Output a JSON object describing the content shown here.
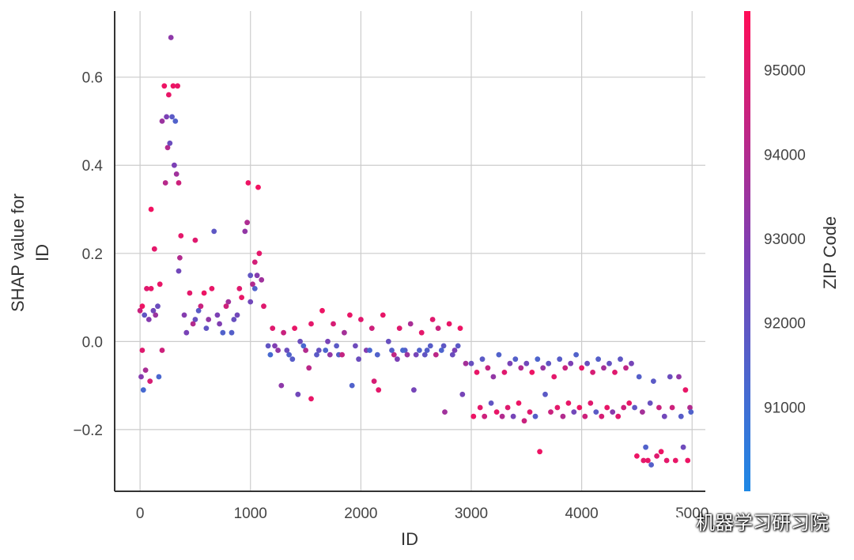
{
  "chart_data": {
    "type": "scatter",
    "xlabel": "ID",
    "ylabel_line1": "SHAP value for",
    "ylabel_line2": "ID",
    "xlim": [
      -230,
      5120
    ],
    "ylim": [
      -0.34,
      0.75
    ],
    "x_ticks": [
      0,
      1000,
      2000,
      3000,
      4000,
      5000
    ],
    "x_tick_labels": [
      "0",
      "1000",
      "2000",
      "3000",
      "4000",
      "5000"
    ],
    "y_ticks": [
      0.6,
      0.4,
      0.2,
      0.0,
      -0.2
    ],
    "y_tick_labels": [
      "0.6",
      "0.4",
      "0.2",
      "0.0",
      "−0.2"
    ],
    "grid": true,
    "colorbar": {
      "label": "ZIP Code",
      "min": 90000,
      "max": 95700,
      "ticks": [
        95000,
        94000,
        93000,
        92000,
        91000
      ],
      "tick_labels": [
        "95000",
        "94000",
        "93000",
        "92000",
        "91000"
      ],
      "low_color": "#1e88e5",
      "mid_color": "#7e3fb4",
      "high_color": "#ff0d57"
    },
    "series": [
      {
        "points": [
          [
            0,
            0.07,
            94500
          ],
          [
            20,
            0.08,
            95300
          ],
          [
            40,
            0.06,
            92000
          ],
          [
            60,
            0.12,
            95000
          ],
          [
            80,
            0.05,
            93000
          ],
          [
            100,
            0.12,
            95200
          ],
          [
            120,
            0.07,
            92500
          ],
          [
            140,
            0.06,
            93500
          ],
          [
            10,
            -0.08,
            93000
          ],
          [
            30,
            -0.11,
            91200
          ],
          [
            50,
            -0.065,
            93800
          ],
          [
            90,
            -0.09,
            94800
          ],
          [
            20,
            -0.02,
            95000
          ],
          [
            100,
            0.3,
            95400
          ],
          [
            130,
            0.21,
            95100
          ],
          [
            160,
            0.08,
            92300
          ],
          [
            180,
            0.13,
            95200
          ],
          [
            200,
            -0.02,
            94600
          ],
          [
            170,
            -0.08,
            91300
          ],
          [
            200,
            0.5,
            93500
          ],
          [
            220,
            0.58,
            95300
          ],
          [
            240,
            0.51,
            92800
          ],
          [
            250,
            0.44,
            94000
          ],
          [
            260,
            0.56,
            95200
          ],
          [
            270,
            0.45,
            92300
          ],
          [
            280,
            0.69,
            93200
          ],
          [
            290,
            0.51,
            91800
          ],
          [
            300,
            0.58,
            95300
          ],
          [
            310,
            0.4,
            92800
          ],
          [
            320,
            0.5,
            91500
          ],
          [
            330,
            0.38,
            93600
          ],
          [
            340,
            0.58,
            95200
          ],
          [
            230,
            0.36,
            94100
          ],
          [
            350,
            0.36,
            94600
          ],
          [
            360,
            0.19,
            94000
          ],
          [
            370,
            0.24,
            95100
          ],
          [
            350,
            0.16,
            92500
          ],
          [
            400,
            0.06,
            93000
          ],
          [
            450,
            0.11,
            95100
          ],
          [
            500,
            0.05,
            92200
          ],
          [
            550,
            0.08,
            94500
          ],
          [
            600,
            0.03,
            92000
          ],
          [
            650,
            0.12,
            95200
          ],
          [
            700,
            0.06,
            92800
          ],
          [
            750,
            0.02,
            91500
          ],
          [
            800,
            0.09,
            93600
          ],
          [
            850,
            0.05,
            92200
          ],
          [
            900,
            0.12,
            95000
          ],
          [
            420,
            0.02,
            92700
          ],
          [
            480,
            0.04,
            94000
          ],
          [
            530,
            0.07,
            91800
          ],
          [
            580,
            0.11,
            95300
          ],
          [
            620,
            0.05,
            93300
          ],
          [
            670,
            0.25,
            91900
          ],
          [
            720,
            0.04,
            92900
          ],
          [
            780,
            0.08,
            94600
          ],
          [
            830,
            0.02,
            91600
          ],
          [
            880,
            0.06,
            92500
          ],
          [
            500,
            0.23,
            95000
          ],
          [
            920,
            0.1,
            95200
          ],
          [
            950,
            0.25,
            93300
          ],
          [
            970,
            0.27,
            93900
          ],
          [
            980,
            0.36,
            95300
          ],
          [
            1000,
            0.15,
            92000
          ],
          [
            1020,
            0.13,
            94000
          ],
          [
            1040,
            0.12,
            91500
          ],
          [
            1060,
            0.15,
            93000
          ],
          [
            1070,
            0.35,
            95400
          ],
          [
            1080,
            0.2,
            95100
          ],
          [
            1100,
            0.14,
            93600
          ],
          [
            1120,
            0.08,
            95000
          ],
          [
            1040,
            0.18,
            94700
          ],
          [
            1000,
            0.09,
            92500
          ],
          [
            1160,
            -0.01,
            92000
          ],
          [
            1200,
            0.03,
            95000
          ],
          [
            1250,
            -0.02,
            93300
          ],
          [
            1300,
            0.02,
            94500
          ],
          [
            1350,
            -0.03,
            91500
          ],
          [
            1400,
            0.03,
            95200
          ],
          [
            1450,
            0.0,
            92300
          ],
          [
            1500,
            -0.02,
            94000
          ],
          [
            1550,
            0.04,
            95100
          ],
          [
            1600,
            -0.03,
            91800
          ],
          [
            1650,
            0.07,
            95300
          ],
          [
            1700,
            0.0,
            92700
          ],
          [
            1750,
            0.04,
            94800
          ],
          [
            1800,
            -0.03,
            91600
          ],
          [
            1850,
            0.02,
            93700
          ],
          [
            1900,
            0.06,
            95200
          ],
          [
            1950,
            -0.01,
            92400
          ],
          [
            2000,
            0.05,
            95000
          ],
          [
            2050,
            -0.02,
            93000
          ],
          [
            2100,
            0.03,
            94600
          ],
          [
            2150,
            -0.03,
            91500
          ],
          [
            2200,
            0.06,
            95200
          ],
          [
            2250,
            0.0,
            92200
          ],
          [
            2300,
            -0.03,
            94300
          ],
          [
            2350,
            0.03,
            95000
          ],
          [
            2400,
            -0.02,
            91800
          ],
          [
            2450,
            0.04,
            93800
          ],
          [
            2500,
            -0.03,
            92600
          ],
          [
            2550,
            0.02,
            95100
          ],
          [
            2600,
            -0.02,
            91600
          ],
          [
            2650,
            0.05,
            95000
          ],
          [
            2700,
            0.03,
            94500
          ],
          [
            2750,
            -0.01,
            91900
          ],
          [
            2800,
            0.04,
            95200
          ],
          [
            2850,
            -0.02,
            92800
          ],
          [
            2900,
            0.03,
            95300
          ],
          [
            1180,
            -0.03,
            91200
          ],
          [
            1220,
            -0.01,
            92900
          ],
          [
            1280,
            -0.1,
            93200
          ],
          [
            1330,
            -0.02,
            92300
          ],
          [
            1380,
            -0.04,
            91700
          ],
          [
            1430,
            -0.12,
            92500
          ],
          [
            1480,
            -0.01,
            91300
          ],
          [
            1530,
            -0.06,
            94200
          ],
          [
            1550,
            -0.13,
            95200
          ],
          [
            1620,
            -0.02,
            92100
          ],
          [
            1680,
            -0.02,
            91400
          ],
          [
            1720,
            -0.03,
            93300
          ],
          [
            1780,
            -0.01,
            91800
          ],
          [
            1830,
            -0.03,
            94400
          ],
          [
            1920,
            -0.1,
            91500
          ],
          [
            1980,
            -0.04,
            92300
          ],
          [
            2080,
            -0.02,
            91300
          ],
          [
            2120,
            -0.09,
            94800
          ],
          [
            2160,
            -0.11,
            95100
          ],
          [
            2280,
            -0.02,
            91600
          ],
          [
            2330,
            -0.04,
            92800
          ],
          [
            2380,
            -0.02,
            91300
          ],
          [
            2420,
            -0.03,
            93500
          ],
          [
            2480,
            -0.11,
            92600
          ],
          [
            2530,
            -0.02,
            91500
          ],
          [
            2580,
            -0.03,
            92000
          ],
          [
            2630,
            -0.01,
            91700
          ],
          [
            2680,
            -0.03,
            94200
          ],
          [
            2730,
            -0.02,
            91400
          ],
          [
            2760,
            -0.16,
            93600
          ],
          [
            2830,
            -0.03,
            92300
          ],
          [
            2880,
            -0.01,
            91800
          ],
          [
            2920,
            -0.12,
            92600
          ],
          [
            2950,
            -0.05,
            93700
          ],
          [
            3000,
            -0.05,
            92200
          ],
          [
            3050,
            -0.07,
            95200
          ],
          [
            3100,
            -0.04,
            91800
          ],
          [
            3150,
            -0.06,
            94400
          ],
          [
            3200,
            -0.08,
            93300
          ],
          [
            3250,
            -0.03,
            91500
          ],
          [
            3300,
            -0.07,
            95000
          ],
          [
            3350,
            -0.05,
            92700
          ],
          [
            3400,
            -0.04,
            91600
          ],
          [
            3450,
            -0.06,
            94000
          ],
          [
            3500,
            -0.05,
            92500
          ],
          [
            3550,
            -0.07,
            95300
          ],
          [
            3600,
            -0.04,
            91400
          ],
          [
            3650,
            -0.06,
            93400
          ],
          [
            3700,
            -0.05,
            92000
          ],
          [
            3750,
            -0.08,
            95100
          ],
          [
            3800,
            -0.04,
            91700
          ],
          [
            3850,
            -0.06,
            94500
          ],
          [
            3900,
            -0.05,
            92800
          ],
          [
            3950,
            -0.03,
            91500
          ],
          [
            4000,
            -0.06,
            95200
          ],
          [
            4050,
            -0.05,
            92300
          ],
          [
            4100,
            -0.07,
            94800
          ],
          [
            4150,
            -0.04,
            91600
          ],
          [
            4200,
            -0.06,
            93700
          ],
          [
            4250,
            -0.05,
            92100
          ],
          [
            4300,
            -0.07,
            95000
          ],
          [
            4350,
            -0.04,
            91900
          ],
          [
            4400,
            -0.06,
            94300
          ],
          [
            4450,
            -0.05,
            92600
          ],
          [
            3020,
            -0.17,
            95300
          ],
          [
            3080,
            -0.15,
            95100
          ],
          [
            3120,
            -0.17,
            94600
          ],
          [
            3180,
            -0.14,
            92000
          ],
          [
            3230,
            -0.16,
            95200
          ],
          [
            3280,
            -0.17,
            94000
          ],
          [
            3330,
            -0.15,
            95000
          ],
          [
            3380,
            -0.17,
            92600
          ],
          [
            3430,
            -0.14,
            95300
          ],
          [
            3480,
            -0.18,
            94500
          ],
          [
            3530,
            -0.16,
            95000
          ],
          [
            3580,
            -0.17,
            91700
          ],
          [
            3620,
            -0.25,
            95300
          ],
          [
            3670,
            -0.12,
            91800
          ],
          [
            3720,
            -0.16,
            94500
          ],
          [
            3780,
            -0.15,
            95100
          ],
          [
            3830,
            -0.17,
            94000
          ],
          [
            3880,
            -0.14,
            95200
          ],
          [
            3930,
            -0.16,
            92500
          ],
          [
            3980,
            -0.15,
            95300
          ],
          [
            4030,
            -0.17,
            94600
          ],
          [
            4080,
            -0.14,
            95000
          ],
          [
            4130,
            -0.16,
            91800
          ],
          [
            4180,
            -0.17,
            94800
          ],
          [
            4230,
            -0.15,
            95200
          ],
          [
            4280,
            -0.16,
            93100
          ],
          [
            4330,
            -0.17,
            95000
          ],
          [
            4380,
            -0.15,
            94600
          ],
          [
            4430,
            -0.14,
            95200
          ],
          [
            4480,
            -0.15,
            92000
          ],
          [
            4500,
            -0.26,
            95300
          ],
          [
            4520,
            -0.08,
            91600
          ],
          [
            4550,
            -0.16,
            93700
          ],
          [
            4580,
            -0.24,
            91500
          ],
          [
            4600,
            -0.27,
            95200
          ],
          [
            4620,
            -0.14,
            92200
          ],
          [
            4650,
            -0.09,
            91800
          ],
          [
            4680,
            -0.26,
            95000
          ],
          [
            4700,
            -0.15,
            94500
          ],
          [
            4720,
            -0.25,
            95300
          ],
          [
            4750,
            -0.17,
            92500
          ],
          [
            4770,
            -0.27,
            95100
          ],
          [
            4800,
            -0.08,
            92300
          ],
          [
            4820,
            -0.15,
            94600
          ],
          [
            4850,
            -0.27,
            95200
          ],
          [
            4880,
            -0.08,
            93300
          ],
          [
            4900,
            -0.17,
            91700
          ],
          [
            4920,
            -0.24,
            92400
          ],
          [
            4940,
            -0.11,
            95200
          ],
          [
            4960,
            -0.27,
            95300
          ],
          [
            4980,
            -0.15,
            94000
          ],
          [
            4990,
            -0.16,
            91500
          ],
          [
            4630,
            -0.28,
            91600
          ],
          [
            4560,
            -0.27,
            95100
          ]
        ]
      }
    ]
  },
  "watermark": {
    "text": "机器学习研习院",
    "icon": "wechat-icon"
  }
}
